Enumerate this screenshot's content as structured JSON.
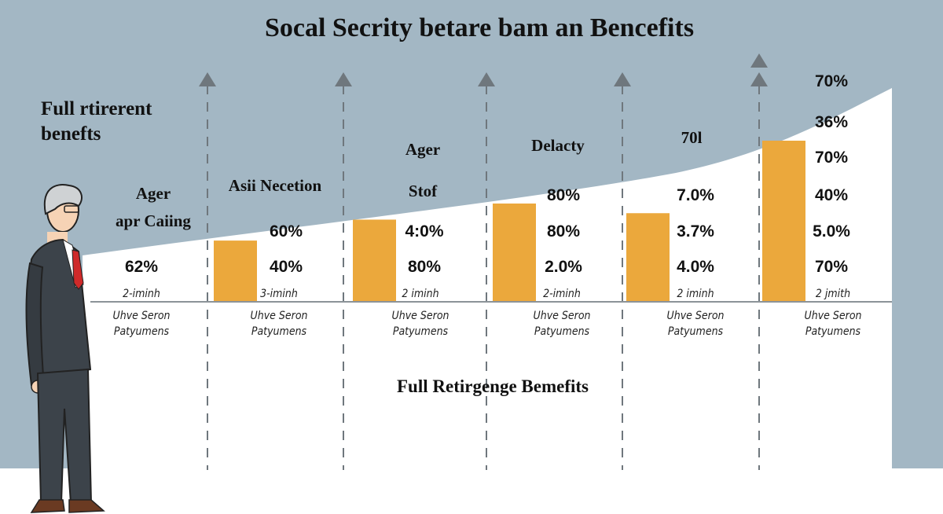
{
  "colors": {
    "background": "#a3b7c4",
    "bar": "#eba83c",
    "curve_fill": "#ffffff",
    "dash": "#6f777d"
  },
  "title": "Socal Secrity betare bam an Bencefits",
  "side_label": [
    "Full rtirerent",
    "benefts"
  ],
  "footer_label": "Full Retirgenge Bemefits",
  "chart_data": {
    "type": "bar",
    "title": "Socal Secrity betare bam an Bencefits",
    "xlabel": "Full Retirgenge Bemefits",
    "ylabel": "",
    "grid": false,
    "categories": [
      "Ager apr Caing",
      "Asii Necetion",
      "Ager Stof",
      "Delacty",
      "70l",
      ""
    ],
    "relative_bar_heights": [
      0,
      0.38,
      0.51,
      0.61,
      0.55,
      1.0
    ],
    "columns": [
      {
        "heading": [
          "Ager",
          "apr Caiing"
        ],
        "values": [
          "62%"
        ],
        "sub": "2-iminh",
        "caption": [
          "Uhve Seron",
          "Patyumens"
        ]
      },
      {
        "heading": [
          "Asii Necetion"
        ],
        "values": [
          "60%",
          "40%"
        ],
        "sub": "3-iminh",
        "caption": [
          "Uhve Seron",
          "Patyumens"
        ]
      },
      {
        "heading": [
          "Ager",
          "Stof"
        ],
        "values": [
          "4:0%",
          "80%"
        ],
        "sub": "2 iminh",
        "caption": [
          "Uhve Seron",
          "Patyumens"
        ]
      },
      {
        "heading": [
          "Delacty"
        ],
        "values": [
          "80%",
          "80%",
          "2.0%"
        ],
        "sub": "2-iminh",
        "caption": [
          "Uhve Seron",
          "Patyumens"
        ]
      },
      {
        "heading": [
          "70l"
        ],
        "values": [
          "7.0%",
          "3.7%",
          "4.0%"
        ],
        "sub": "2 iminh",
        "caption": [
          "Uhve Seron",
          "Patyumens"
        ]
      },
      {
        "heading": [],
        "values": [
          "70%",
          "36%",
          "70%",
          "40%",
          "5.0%",
          "70%"
        ],
        "sub": "2 jmith",
        "caption": [
          "Uhve Seron",
          "Patyumens"
        ]
      }
    ]
  }
}
